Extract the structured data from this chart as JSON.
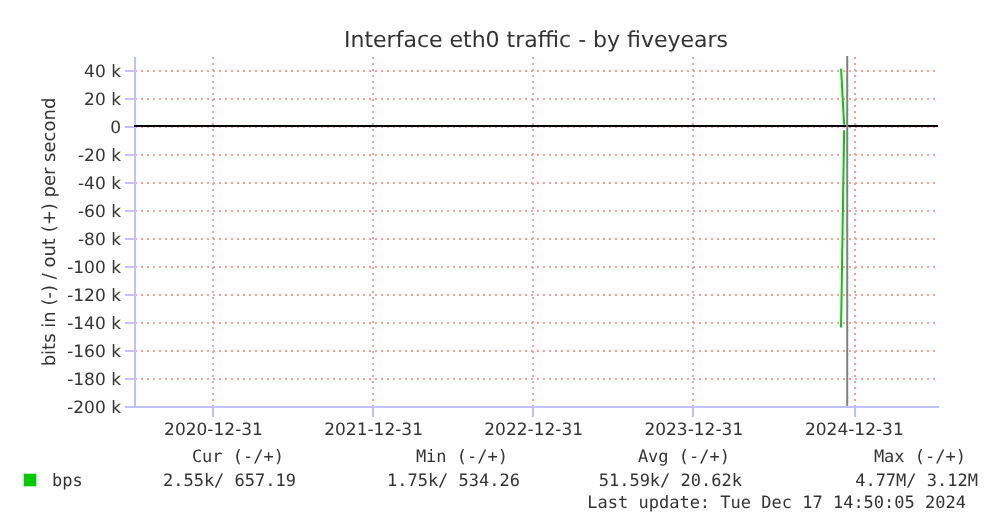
{
  "chart_data": {
    "type": "line",
    "title": "Interface eth0 traffic - by fiveyears",
    "ylabel": "bits in (-) / out (+) per second",
    "series": [
      {
        "name": "bps",
        "color": "#00cc00",
        "x": [
          "2024-12-03",
          "2024-12-10"
        ],
        "values": [
          41000,
          1000
        ]
      },
      {
        "color": "#00cc00",
        "x": [
          "2024-12-03",
          "2024-12-10"
        ],
        "values": [
          -144000,
          -3000
        ]
      }
    ],
    "xlim": [
      "2020-07-05",
      "2025-07-12"
    ],
    "xticks": [
      "2020-12-31",
      "2021-12-31",
      "2022-12-31",
      "2023-12-31",
      "2024-12-31"
    ],
    "ylim": [
      -200000,
      50000
    ],
    "yticks": [
      {
        "value": 40000,
        "label": "40 k"
      },
      {
        "value": 20000,
        "label": "20 k"
      },
      0,
      {
        "value": -20000,
        "label": "-20 k"
      },
      {
        "value": -40000,
        "label": "-40 k"
      },
      {
        "value": -60000,
        "label": "-60 k"
      },
      {
        "value": -80000,
        "label": "-80 k"
      },
      {
        "value": -100000,
        "label": "-100 k"
      },
      {
        "value": -120000,
        "label": "-120 k"
      },
      {
        "value": -140000,
        "label": "-140 k"
      },
      {
        "value": -160000,
        "label": "-160 k"
      },
      {
        "value": -180000,
        "label": "-180 k"
      },
      {
        "value": -200000,
        "label": "-200 k"
      }
    ],
    "ref_lines": [
      {
        "axis": "y",
        "value": 0,
        "color": "#000000"
      },
      {
        "axis": "x",
        "value": "2024-12-17",
        "color": "#808080"
      }
    ],
    "grid": true,
    "legend": "bottom left",
    "marker": "none",
    "line_style": "solid",
    "annotations": [
      "Cur (-/+)",
      "Min (-/+)",
      "Avg (-/+)",
      "Max (-/+)",
      "2.55k/ 657.19",
      "1.75k/ 534.26",
      "51.59k/  20.62k",
      "4.77M/   3.12M",
      "Last update: Tue Dec 17 14:50:05 2024"
    ]
  }
}
